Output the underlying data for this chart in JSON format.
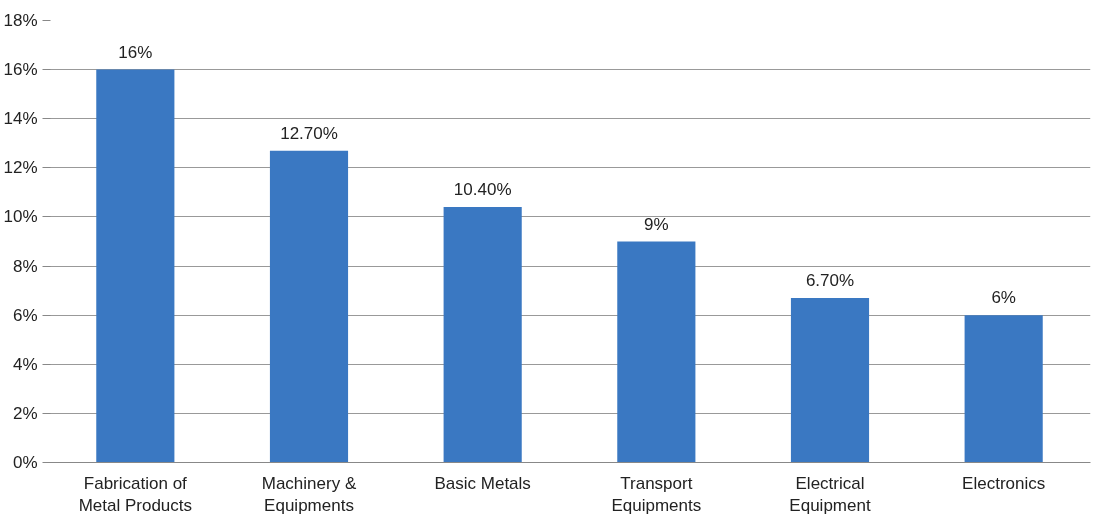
{
  "chart_data": {
    "type": "bar",
    "categories": [
      "Fabrication of Metal Products",
      "Machinery & Equipments",
      "Basic Metals",
      "Transport Equipments",
      "Electrical Equipment",
      "Electronics"
    ],
    "values": [
      16,
      12.7,
      10.4,
      9,
      6.7,
      6
    ],
    "value_labels": [
      "16%",
      "12.70%",
      "10.40%",
      "9%",
      "6.70%",
      "6%"
    ],
    "color": "#3a78c2",
    "ylim": [
      0,
      18
    ],
    "yticks": [
      {
        "value": 0,
        "label": "0%"
      },
      {
        "value": 2,
        "label": "2%"
      },
      {
        "value": 4,
        "label": "4%"
      },
      {
        "value": 6,
        "label": "6%"
      },
      {
        "value": 8,
        "label": "8%"
      },
      {
        "value": 10,
        "label": "10%"
      },
      {
        "value": 12,
        "label": "12%"
      },
      {
        "value": 14,
        "label": "14%"
      },
      {
        "value": 16,
        "label": "16%"
      },
      {
        "value": 18,
        "label": "18%"
      }
    ],
    "grid": "y"
  }
}
